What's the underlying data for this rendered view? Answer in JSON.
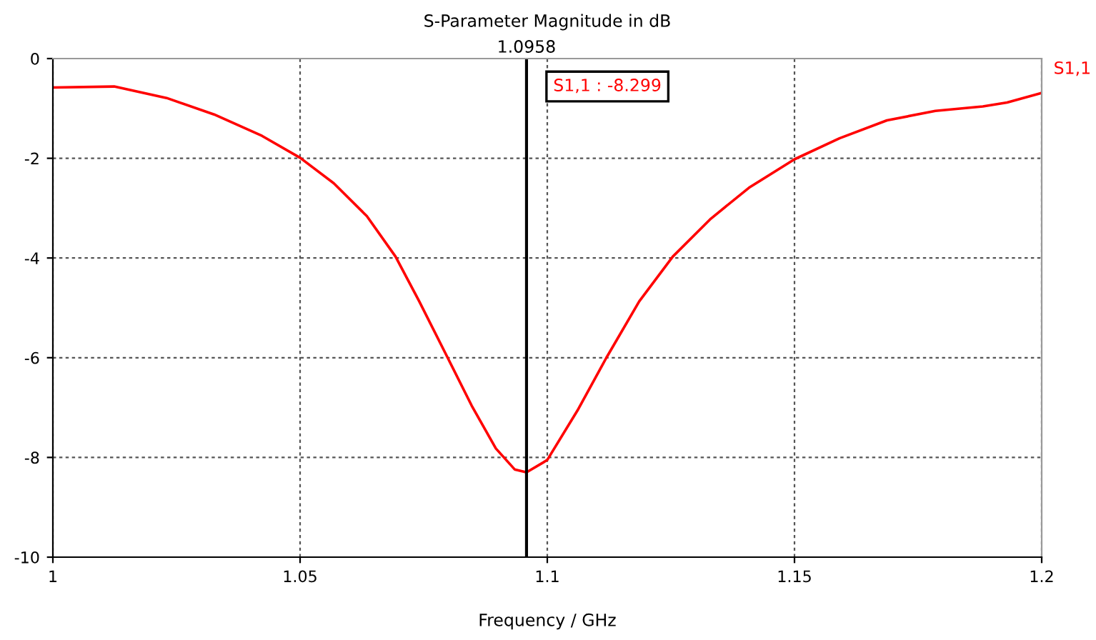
{
  "chart_data": {
    "type": "line",
    "title": "S-Parameter Magnitude in dB",
    "xlabel": "Frequency / GHz",
    "x": [
      1.0,
      1.0124,
      1.023,
      1.0326,
      1.0423,
      1.05,
      1.0568,
      1.0635,
      1.0693,
      1.0741,
      1.0799,
      1.0847,
      1.0896,
      1.0934,
      1.0958,
      1.0992,
      1.1,
      1.1061,
      1.1119,
      1.1186,
      1.1254,
      1.1331,
      1.1408,
      1.15,
      1.1591,
      1.1687,
      1.1785,
      1.1881,
      1.193,
      1.2
    ],
    "series": [
      {
        "name": "S1,1",
        "color": "#ff0000",
        "values": [
          -0.58,
          -0.56,
          -0.79,
          -1.12,
          -1.55,
          -1.99,
          -2.5,
          -3.16,
          -3.97,
          -4.87,
          -6.01,
          -6.96,
          -7.82,
          -8.24,
          -8.299,
          -8.1,
          -8.05,
          -7.06,
          -6.01,
          -4.87,
          -3.97,
          -3.21,
          -2.59,
          -2.02,
          -1.6,
          -1.24,
          -1.05,
          -0.96,
          -0.88,
          -0.69
        ]
      }
    ],
    "xlim": [
      1,
      1.2
    ],
    "xticks": [
      1,
      1.05,
      1.1,
      1.15,
      1.2
    ],
    "ylim": [
      -10,
      0
    ],
    "yticks": [
      0,
      -2,
      -4,
      -6,
      -8,
      -10
    ],
    "ref_lines": [
      {
        "axis": "x",
        "value": 1.0958,
        "label": "1.0958",
        "color": "#000000",
        "line_style": "solid"
      }
    ],
    "annotations": [
      "S1,1 : -8.299"
    ],
    "grid": true,
    "legend": "top right",
    "marker": "none",
    "line_style": "solid"
  }
}
